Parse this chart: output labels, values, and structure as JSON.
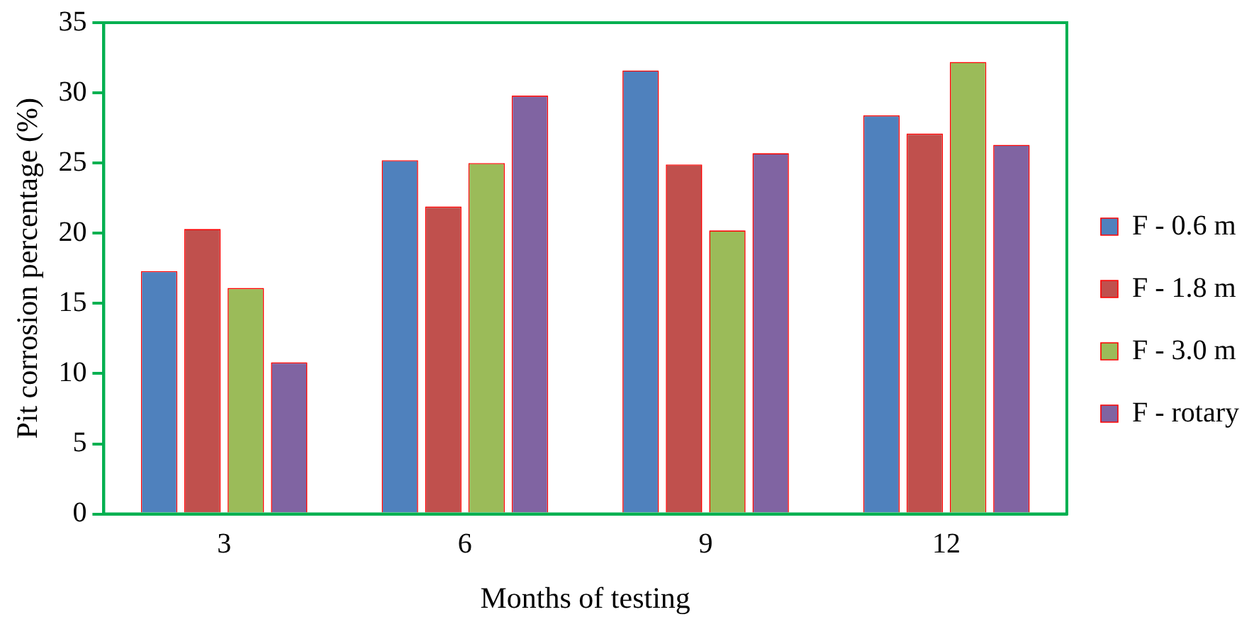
{
  "chart_data": {
    "type": "bar",
    "xlabel": "Months of testing",
    "ylabel": "Pit corrosion percentage (%)",
    "categories": [
      "3",
      "6",
      "9",
      "12"
    ],
    "series": [
      {
        "name": "F - 0.6 m",
        "color": "#4f81bd",
        "values": [
          17.3,
          25.2,
          31.6,
          28.4
        ]
      },
      {
        "name": "F - 1.8 m",
        "color": "#c0504d",
        "values": [
          20.3,
          21.9,
          24.9,
          27.1
        ]
      },
      {
        "name": "F - 3.0 m",
        "color": "#9bbb59",
        "values": [
          16.1,
          25.0,
          20.2,
          32.2
        ]
      },
      {
        "name": "F - rotary",
        "color": "#8064a2",
        "values": [
          10.8,
          29.8,
          25.7,
          26.3
        ]
      }
    ],
    "ylim": [
      0,
      35
    ],
    "yticks": [
      0,
      5,
      10,
      15,
      20,
      25,
      30,
      35
    ],
    "grid": false,
    "legend": "right"
  }
}
